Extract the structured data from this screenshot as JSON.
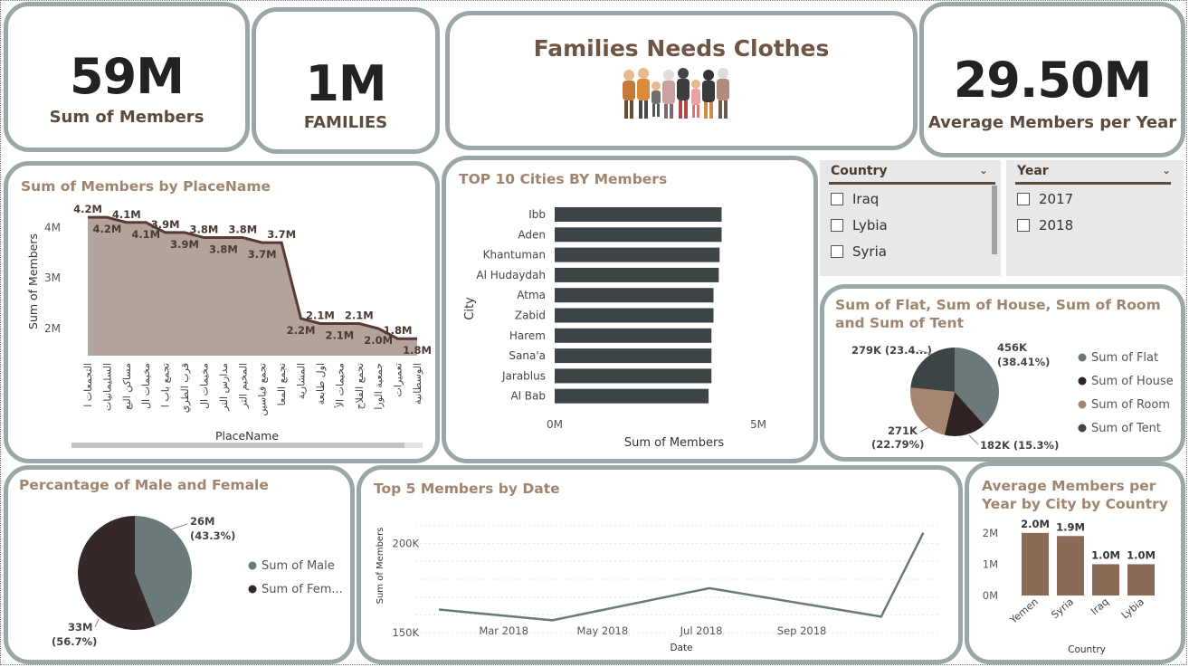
{
  "kpis": {
    "members": {
      "value": "59M",
      "label": "Sum of Members"
    },
    "families": {
      "value": "1M",
      "label": "FAMILIES"
    },
    "avg": {
      "value": "29.50M",
      "label": "Average Members per Year"
    }
  },
  "banner": {
    "title": "Families Needs Clothes",
    "image": "family-illustration"
  },
  "slicers": {
    "country": {
      "title": "Country",
      "items": [
        "Iraq",
        "Lybia",
        "Syria"
      ]
    },
    "year": {
      "title": "Year",
      "items": [
        "2017",
        "2018"
      ]
    }
  },
  "colors": {
    "brown": "#8b6a58",
    "dark": "#3d4448",
    "taupe": "#b3a39d",
    "line": "#5a3a32",
    "grey": "#6c797b",
    "border": "#9aa6a8"
  },
  "place": {
    "title": "Sum of Members by PlaceName",
    "xlabel": "PlaceName",
    "ylabel": "Sum of Members",
    "ticks": [
      "4M",
      "3M",
      "2M"
    ],
    "categories": [
      "التجمعات ا",
      "السليمانيات",
      "مساكن البع",
      "مخيمات ال",
      "تجمع باب ا",
      "قرب الطري",
      "مخيمات ال",
      "مدارس التر",
      "المخيم التر",
      "تجمع قباسين",
      "تجمع المعا",
      "المشارية",
      "اول طابعة",
      "مخيمات الأ",
      "تجمع الفلاح",
      "جمعية الورا",
      "تعميرات",
      "الوسطانية"
    ],
    "data_labels": [
      "4.2M",
      "4.2M",
      "4.1M",
      "4.1M",
      "3.9M",
      "3.9M",
      "3.8M",
      "3.8M",
      "3.8M",
      "3.7M",
      "3.7M",
      "2.2M",
      "2.1M",
      "2.1M",
      "2.1M",
      "2.0M",
      "1.8M",
      "1.8M"
    ]
  },
  "cities": {
    "title": "TOP 10 Cities BY Members",
    "xlabel": "Sum of Members",
    "ylabel": "City",
    "ticks": [
      "0M",
      "5M"
    ]
  },
  "flat": {
    "title": "Sum of Flat, Sum of House, Sum of Room and Sum of Tent",
    "legend": [
      "Sum of Flat",
      "Sum of House",
      "Sum of Room",
      "Sum of Tent"
    ],
    "labels": [
      "456K",
      "(38.41%)",
      "182K (15.3%)",
      "271K",
      "(22.79%)",
      "279K (23.4...)"
    ]
  },
  "gender": {
    "title": "Percantage of Male and Female",
    "legend": [
      "Sum of Male",
      "Sum of Fem..."
    ],
    "labels": [
      "26M",
      "(43.3%)",
      "33M",
      "(56.7%)"
    ]
  },
  "dates": {
    "title": "Top 5 Members by Date",
    "xlabel": "Date",
    "ylabel": "Sum of Members",
    "yticks": [
      "200K",
      "150K"
    ],
    "xticks": [
      "Mar 2018",
      "May 2018",
      "Jul 2018",
      "Sep 2018"
    ]
  },
  "avgcity": {
    "title": "Average Members per Year by City by Country",
    "xlabel": "Country",
    "yticks": [
      "2M",
      "1M",
      "0M"
    ]
  },
  "chart_data": [
    {
      "type": "area",
      "title": "Sum of Members by PlaceName",
      "xlabel": "PlaceName",
      "ylabel": "Sum of Members",
      "categories": [
        "التجمعات ا",
        "السليمانيات",
        "مساكن البع",
        "مخيمات ال",
        "تجمع باب ا",
        "قرب الطري",
        "مخيمات ال",
        "مدارس التر",
        "المخيم التر",
        "تجمع قباسين",
        "تجمع المعا",
        "المشارية",
        "اول طابعة",
        "مخيمات الأ",
        "تجمع الفلاح",
        "جمعية الورا",
        "تعميرات",
        "الوسطانية"
      ],
      "values": [
        4.2,
        4.2,
        4.1,
        4.1,
        3.9,
        3.9,
        3.8,
        3.8,
        3.8,
        3.7,
        3.7,
        2.2,
        2.1,
        2.1,
        2.1,
        2.0,
        1.8,
        1.8
      ],
      "units": "M",
      "ylim": [
        1.5,
        4.4
      ]
    },
    {
      "type": "bar",
      "orientation": "horizontal",
      "title": "TOP 10 Cities BY Members",
      "xlabel": "Sum of Members",
      "ylabel": "City",
      "categories": [
        "Ibb",
        "Aden",
        "Khantuman",
        "Al Hudaydah",
        "Atma",
        "Zabid",
        "Harem",
        "Sana'a",
        "Jarablus",
        "Al Bab"
      ],
      "values": [
        4.1,
        4.1,
        4.05,
        4.03,
        3.9,
        3.9,
        3.85,
        3.85,
        3.85,
        3.78
      ],
      "units": "M",
      "xlim": [
        0,
        5
      ]
    },
    {
      "type": "pie",
      "title": "Sum of Flat, Sum of House, Sum of Room and Sum of Tent",
      "categories": [
        "Sum of Flat",
        "Sum of House",
        "Sum of Room",
        "Sum of Tent"
      ],
      "values": [
        456,
        182,
        271,
        279
      ],
      "percent": [
        38.41,
        15.3,
        22.79,
        23.4
      ],
      "units": "K",
      "colors": [
        "#6c797b",
        "#2f2222",
        "#a68571",
        "#3d4448"
      ]
    },
    {
      "type": "pie",
      "title": "Percantage of Male and Female",
      "categories": [
        "Sum of Male",
        "Sum of Fem..."
      ],
      "values": [
        26,
        33
      ],
      "percent": [
        43.3,
        56.7
      ],
      "units": "M",
      "colors": [
        "#6c797b",
        "#342828"
      ]
    },
    {
      "type": "line",
      "title": "Top 5 Members by Date",
      "xlabel": "Date",
      "ylabel": "Sum of Members",
      "x": [
        "2018-01-20",
        "2018-03-31",
        "2018-07-06",
        "2018-10-20",
        "2018-11-15"
      ],
      "values": [
        163000,
        157000,
        175000,
        159000,
        206000
      ],
      "ylim": [
        145000,
        215000
      ],
      "xticks": [
        "Mar 2018",
        "May 2018",
        "Jul 2018",
        "Sep 2018"
      ]
    },
    {
      "type": "bar",
      "title": "Average Members per Year by City by Country",
      "xlabel": "Country",
      "categories": [
        "Yemen",
        "Syria",
        "Iraq",
        "Lybia"
      ],
      "values": [
        2.0,
        1.9,
        1.0,
        1.0
      ],
      "labels": [
        "2.0M",
        "1.9M",
        "1.0M",
        "1.0M"
      ],
      "units": "M",
      "ylim": [
        0,
        2.4
      ]
    }
  ]
}
